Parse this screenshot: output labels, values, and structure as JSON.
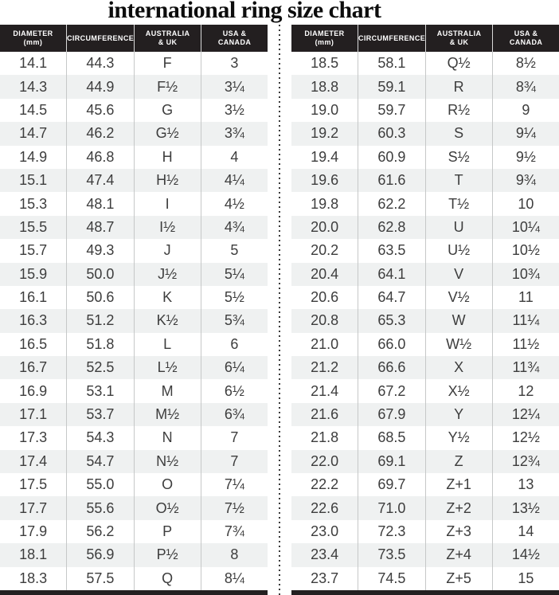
{
  "page_title": "international ring size chart",
  "colors": {
    "header_bg": "#231f20",
    "header_text": "#ffffff",
    "row_alt_bg": "#eff1f1",
    "cell_text": "#3d3d3d",
    "column_divider": "#c6c8c8",
    "dotted_divider": "#3a3a3a",
    "bottom_bar": "#231f20"
  },
  "chart_data": [
    {
      "type": "table",
      "title": "international ring size chart",
      "name": "ring-size-table-left",
      "columns": [
        [
          "DIAMETER",
          "(mm)"
        ],
        [
          "CIRCUMFERENCE"
        ],
        [
          "AUSTRALIA",
          "& UK"
        ],
        [
          "USA &",
          "CANADA"
        ]
      ],
      "rows": [
        [
          "14.1",
          "44.3",
          "F",
          "3"
        ],
        [
          "14.3",
          "44.9",
          "F½",
          "3¼"
        ],
        [
          "14.5",
          "45.6",
          "G",
          "3½"
        ],
        [
          "14.7",
          "46.2",
          "G½",
          "3¾"
        ],
        [
          "14.9",
          "46.8",
          "H",
          "4"
        ],
        [
          "15.1",
          "47.4",
          "H½",
          "4¼"
        ],
        [
          "15.3",
          "48.1",
          "I",
          "4½"
        ],
        [
          "15.5",
          "48.7",
          "I½",
          "4¾"
        ],
        [
          "15.7",
          "49.3",
          "J",
          "5"
        ],
        [
          "15.9",
          "50.0",
          "J½",
          "5¼"
        ],
        [
          "16.1",
          "50.6",
          "K",
          "5½"
        ],
        [
          "16.3",
          "51.2",
          "K½",
          "5¾"
        ],
        [
          "16.5",
          "51.8",
          "L",
          "6"
        ],
        [
          "16.7",
          "52.5",
          "L½",
          "6¼"
        ],
        [
          "16.9",
          "53.1",
          "M",
          "6½"
        ],
        [
          "17.1",
          "53.7",
          "M½",
          "6¾"
        ],
        [
          "17.3",
          "54.3",
          "N",
          "7"
        ],
        [
          "17.4",
          "54.7",
          "N½",
          "7"
        ],
        [
          "17.5",
          "55.0",
          "O",
          "7¼"
        ],
        [
          "17.7",
          "55.6",
          "O½",
          "7½"
        ],
        [
          "17.9",
          "56.2",
          "P",
          "7¾"
        ],
        [
          "18.1",
          "56.9",
          "P½",
          "8"
        ],
        [
          "18.3",
          "57.5",
          "Q",
          "8¼"
        ]
      ]
    },
    {
      "type": "table",
      "title": "international ring size chart",
      "name": "ring-size-table-right",
      "columns": [
        [
          "DIAMETER",
          "(mm)"
        ],
        [
          "CIRCUMFERENCE"
        ],
        [
          "AUSTRALIA",
          "& UK"
        ],
        [
          "USA &",
          "CANADA"
        ]
      ],
      "rows": [
        [
          "18.5",
          "58.1",
          "Q½",
          "8½"
        ],
        [
          "18.8",
          "59.1",
          "R",
          "8¾"
        ],
        [
          "19.0",
          "59.7",
          "R½",
          "9"
        ],
        [
          "19.2",
          "60.3",
          "S",
          "9¼"
        ],
        [
          "19.4",
          "60.9",
          "S½",
          "9½"
        ],
        [
          "19.6",
          "61.6",
          "T",
          "9¾"
        ],
        [
          "19.8",
          "62.2",
          "T½",
          "10"
        ],
        [
          "20.0",
          "62.8",
          "U",
          "10¼"
        ],
        [
          "20.2",
          "63.5",
          "U½",
          "10½"
        ],
        [
          "20.4",
          "64.1",
          "V",
          "10¾"
        ],
        [
          "20.6",
          "64.7",
          "V½",
          "11"
        ],
        [
          "20.8",
          "65.3",
          "W",
          "11¼"
        ],
        [
          "21.0",
          "66.0",
          "W½",
          "11½"
        ],
        [
          "21.2",
          "66.6",
          "X",
          "11¾"
        ],
        [
          "21.4",
          "67.2",
          "X½",
          "12"
        ],
        [
          "21.6",
          "67.9",
          "Y",
          "12¼"
        ],
        [
          "21.8",
          "68.5",
          "Y½",
          "12½"
        ],
        [
          "22.0",
          "69.1",
          "Z",
          "12¾"
        ],
        [
          "22.2",
          "69.7",
          "Z+1",
          "13"
        ],
        [
          "22.6",
          "71.0",
          "Z+2",
          "13½"
        ],
        [
          "23.0",
          "72.3",
          "Z+3",
          "14"
        ],
        [
          "23.4",
          "73.5",
          "Z+4",
          "14½"
        ],
        [
          "23.7",
          "74.5",
          "Z+5",
          "15"
        ]
      ]
    }
  ]
}
